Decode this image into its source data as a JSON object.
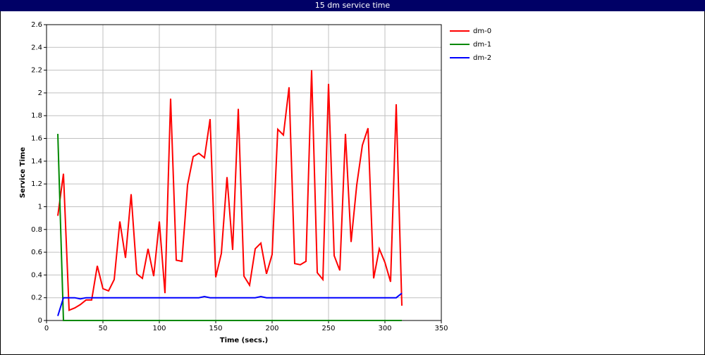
{
  "chart_data": {
    "type": "line",
    "title": "15 dm service time",
    "xlabel": "Time (secs.)",
    "ylabel": "Service Time",
    "x": [
      10,
      15,
      20,
      25,
      30,
      35,
      40,
      45,
      50,
      55,
      60,
      65,
      70,
      75,
      80,
      85,
      90,
      95,
      100,
      105,
      110,
      115,
      120,
      125,
      130,
      135,
      140,
      145,
      150,
      155,
      160,
      165,
      170,
      175,
      180,
      185,
      190,
      195,
      200,
      205,
      210,
      215,
      220,
      225,
      230,
      235,
      240,
      245,
      250,
      255,
      260,
      265,
      270,
      275,
      280,
      285,
      290,
      295,
      300,
      305,
      310,
      315
    ],
    "series": [
      {
        "name": "dm-0",
        "color": "#ff0000",
        "values": [
          0.92,
          1.29,
          0.09,
          0.11,
          0.14,
          0.18,
          0.18,
          0.48,
          0.28,
          0.26,
          0.36,
          0.87,
          0.55,
          1.11,
          0.41,
          0.37,
          0.63,
          0.39,
          0.87,
          0.24,
          1.95,
          0.53,
          0.52,
          1.19,
          1.44,
          1.47,
          1.43,
          1.77,
          0.38,
          0.59,
          1.26,
          0.62,
          1.86,
          0.39,
          0.31,
          0.63,
          0.68,
          0.41,
          0.58,
          1.68,
          1.63,
          2.05,
          0.5,
          0.49,
          0.52,
          2.2,
          0.42,
          0.36,
          2.08,
          0.57,
          0.44,
          1.64,
          0.69,
          1.19,
          1.54,
          1.69,
          0.37,
          0.63,
          0.51,
          0.34,
          1.9,
          0.13
        ]
      },
      {
        "name": "dm-1",
        "color": "#008800",
        "values": [
          1.64,
          0,
          0,
          0,
          0,
          0,
          0,
          0,
          0,
          0,
          0,
          0,
          0,
          0,
          0,
          0,
          0,
          0,
          0,
          0,
          0,
          0,
          0,
          0,
          0,
          0,
          0,
          0,
          0,
          0,
          0,
          0,
          0,
          0,
          0,
          0,
          0,
          0,
          0,
          0,
          0,
          0,
          0,
          0,
          0,
          0,
          0,
          0,
          0,
          0,
          0,
          0,
          0,
          0,
          0,
          0,
          0,
          0,
          0,
          0,
          0,
          0
        ]
      },
      {
        "name": "dm-2",
        "color": "#0000ff",
        "values": [
          0.04,
          0.2,
          0.2,
          0.2,
          0.19,
          0.2,
          0.2,
          0.2,
          0.2,
          0.2,
          0.2,
          0.2,
          0.2,
          0.2,
          0.2,
          0.2,
          0.2,
          0.2,
          0.2,
          0.2,
          0.2,
          0.2,
          0.2,
          0.2,
          0.2,
          0.2,
          0.21,
          0.2,
          0.2,
          0.2,
          0.2,
          0.2,
          0.2,
          0.2,
          0.2,
          0.2,
          0.21,
          0.2,
          0.2,
          0.2,
          0.2,
          0.2,
          0.2,
          0.2,
          0.2,
          0.2,
          0.2,
          0.2,
          0.2,
          0.2,
          0.2,
          0.2,
          0.2,
          0.2,
          0.2,
          0.2,
          0.2,
          0.2,
          0.2,
          0.2,
          0.2,
          0.24
        ]
      }
    ],
    "xlim": [
      0,
      350
    ],
    "xticks": [
      0,
      50,
      100,
      150,
      200,
      250,
      300,
      350
    ],
    "ylim": [
      0,
      2.6
    ],
    "yticks": [
      0,
      0.2,
      0.4,
      0.6,
      0.8,
      1,
      1.2,
      1.4,
      1.6,
      1.8,
      2,
      2.2,
      2.4,
      2.6
    ],
    "grid": true,
    "legend": "right"
  }
}
